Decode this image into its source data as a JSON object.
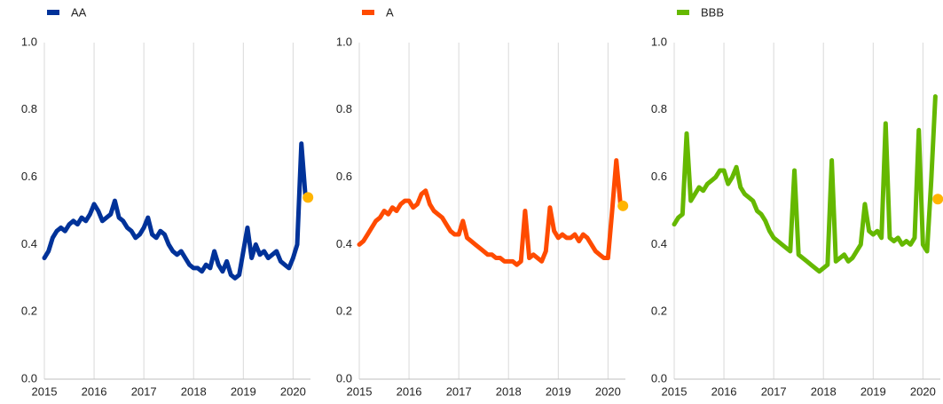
{
  "chart_data": [
    {
      "type": "line",
      "x": [
        2015.0,
        2015.083,
        2015.167,
        2015.25,
        2015.333,
        2015.417,
        2015.5,
        2015.583,
        2015.667,
        2015.75,
        2015.833,
        2015.917,
        2016.0,
        2016.083,
        2016.167,
        2016.25,
        2016.333,
        2016.417,
        2016.5,
        2016.583,
        2016.667,
        2016.75,
        2016.833,
        2016.917,
        2017.0,
        2017.083,
        2017.167,
        2017.25,
        2017.333,
        2017.417,
        2017.5,
        2017.583,
        2017.667,
        2017.75,
        2017.833,
        2017.917,
        2018.0,
        2018.083,
        2018.167,
        2018.25,
        2018.333,
        2018.417,
        2018.5,
        2018.583,
        2018.667,
        2018.75,
        2018.833,
        2018.917,
        2019.0,
        2019.083,
        2019.167,
        2019.25,
        2019.333,
        2019.417,
        2019.5,
        2019.583,
        2019.667,
        2019.75,
        2019.833,
        2019.917,
        2020.0,
        2020.083,
        2020.167,
        2020.25
      ],
      "series": [
        {
          "name": "AA",
          "color": "#003299",
          "values": [
            0.36,
            0.38,
            0.42,
            0.44,
            0.45,
            0.44,
            0.46,
            0.47,
            0.46,
            0.48,
            0.47,
            0.49,
            0.52,
            0.5,
            0.47,
            0.48,
            0.49,
            0.53,
            0.48,
            0.47,
            0.45,
            0.44,
            0.42,
            0.43,
            0.45,
            0.48,
            0.43,
            0.42,
            0.44,
            0.43,
            0.4,
            0.38,
            0.37,
            0.38,
            0.36,
            0.34,
            0.33,
            0.33,
            0.32,
            0.34,
            0.33,
            0.38,
            0.34,
            0.32,
            0.35,
            0.31,
            0.3,
            0.31,
            0.38,
            0.45,
            0.36,
            0.4,
            0.37,
            0.38,
            0.36,
            0.37,
            0.38,
            0.35,
            0.34,
            0.33,
            0.36,
            0.4,
            0.7,
            0.54
          ]
        }
      ],
      "highlight": {
        "x": 2020.3,
        "y": 0.54,
        "color": "#ffb400"
      },
      "xlim": [
        2015,
        2020.35
      ],
      "xticks": [
        2015,
        2016,
        2017,
        2018,
        2019,
        2020
      ],
      "ylim": [
        0,
        1
      ],
      "yticks": [
        {
          "value": 0,
          "label": "0.0"
        },
        0.2,
        0.4,
        0.6,
        0.8,
        {
          "value": 1,
          "label": "1.0"
        }
      ],
      "grid": "x"
    },
    {
      "type": "line",
      "x": [
        2015.0,
        2015.083,
        2015.167,
        2015.25,
        2015.333,
        2015.417,
        2015.5,
        2015.583,
        2015.667,
        2015.75,
        2015.833,
        2015.917,
        2016.0,
        2016.083,
        2016.167,
        2016.25,
        2016.333,
        2016.417,
        2016.5,
        2016.583,
        2016.667,
        2016.75,
        2016.833,
        2016.917,
        2017.0,
        2017.083,
        2017.167,
        2017.25,
        2017.333,
        2017.417,
        2017.5,
        2017.583,
        2017.667,
        2017.75,
        2017.833,
        2017.917,
        2018.0,
        2018.083,
        2018.167,
        2018.25,
        2018.333,
        2018.417,
        2018.5,
        2018.583,
        2018.667,
        2018.75,
        2018.833,
        2018.917,
        2019.0,
        2019.083,
        2019.167,
        2019.25,
        2019.333,
        2019.417,
        2019.5,
        2019.583,
        2019.667,
        2019.75,
        2019.833,
        2019.917,
        2020.0,
        2020.083,
        2020.167,
        2020.25
      ],
      "series": [
        {
          "name": "A",
          "color": "#ff4b00",
          "values": [
            0.4,
            0.41,
            0.43,
            0.45,
            0.47,
            0.48,
            0.5,
            0.49,
            0.51,
            0.5,
            0.52,
            0.53,
            0.53,
            0.51,
            0.52,
            0.55,
            0.56,
            0.52,
            0.5,
            0.49,
            0.48,
            0.46,
            0.44,
            0.43,
            0.43,
            0.47,
            0.42,
            0.41,
            0.4,
            0.39,
            0.38,
            0.37,
            0.37,
            0.36,
            0.36,
            0.35,
            0.35,
            0.35,
            0.34,
            0.35,
            0.5,
            0.36,
            0.37,
            0.36,
            0.35,
            0.38,
            0.51,
            0.44,
            0.42,
            0.43,
            0.42,
            0.42,
            0.43,
            0.41,
            0.43,
            0.42,
            0.4,
            0.38,
            0.37,
            0.36,
            0.36,
            0.5,
            0.65,
            0.52
          ]
        }
      ],
      "highlight": {
        "x": 2020.3,
        "y": 0.515,
        "color": "#ffb400"
      },
      "xlim": [
        2015,
        2020.35
      ],
      "xticks": [
        2015,
        2016,
        2017,
        2018,
        2019,
        2020
      ],
      "ylim": [
        0,
        1
      ],
      "yticks": [
        {
          "value": 0,
          "label": "0.0"
        },
        0.2,
        0.4,
        0.6,
        0.8,
        {
          "value": 1,
          "label": "1.0"
        }
      ],
      "grid": "x"
    },
    {
      "type": "line",
      "x": [
        2015.0,
        2015.083,
        2015.167,
        2015.25,
        2015.333,
        2015.417,
        2015.5,
        2015.583,
        2015.667,
        2015.75,
        2015.833,
        2015.917,
        2016.0,
        2016.083,
        2016.167,
        2016.25,
        2016.333,
        2016.417,
        2016.5,
        2016.583,
        2016.667,
        2016.75,
        2016.833,
        2016.917,
        2017.0,
        2017.083,
        2017.167,
        2017.25,
        2017.333,
        2017.417,
        2017.5,
        2017.583,
        2017.667,
        2017.75,
        2017.833,
        2017.917,
        2018.0,
        2018.083,
        2018.167,
        2018.25,
        2018.333,
        2018.417,
        2018.5,
        2018.583,
        2018.667,
        2018.75,
        2018.833,
        2018.917,
        2019.0,
        2019.083,
        2019.167,
        2019.25,
        2019.333,
        2019.417,
        2019.5,
        2019.583,
        2019.667,
        2019.75,
        2019.833,
        2019.917,
        2020.0,
        2020.083,
        2020.167,
        2020.25
      ],
      "series": [
        {
          "name": "BBB",
          "color": "#65b800",
          "values": [
            0.46,
            0.48,
            0.49,
            0.73,
            0.53,
            0.55,
            0.57,
            0.56,
            0.58,
            0.59,
            0.6,
            0.62,
            0.62,
            0.58,
            0.6,
            0.63,
            0.57,
            0.55,
            0.54,
            0.53,
            0.5,
            0.49,
            0.47,
            0.44,
            0.42,
            0.41,
            0.4,
            0.39,
            0.38,
            0.62,
            0.37,
            0.36,
            0.35,
            0.34,
            0.33,
            0.32,
            0.33,
            0.34,
            0.65,
            0.35,
            0.36,
            0.37,
            0.35,
            0.36,
            0.38,
            0.4,
            0.52,
            0.44,
            0.43,
            0.44,
            0.42,
            0.76,
            0.42,
            0.41,
            0.42,
            0.4,
            0.41,
            0.4,
            0.42,
            0.74,
            0.4,
            0.38,
            0.59,
            0.84
          ]
        }
      ],
      "highlight": {
        "x": 2020.3,
        "y": 0.535,
        "color": "#ffb400"
      },
      "xlim": [
        2015,
        2020.35
      ],
      "xticks": [
        2015,
        2016,
        2017,
        2018,
        2019,
        2020
      ],
      "ylim": [
        0,
        1
      ],
      "yticks": [
        {
          "value": 0,
          "label": "0.0"
        },
        0.2,
        0.4,
        0.6,
        0.8,
        {
          "value": 1,
          "label": "1.0"
        }
      ],
      "grid": "x"
    }
  ]
}
